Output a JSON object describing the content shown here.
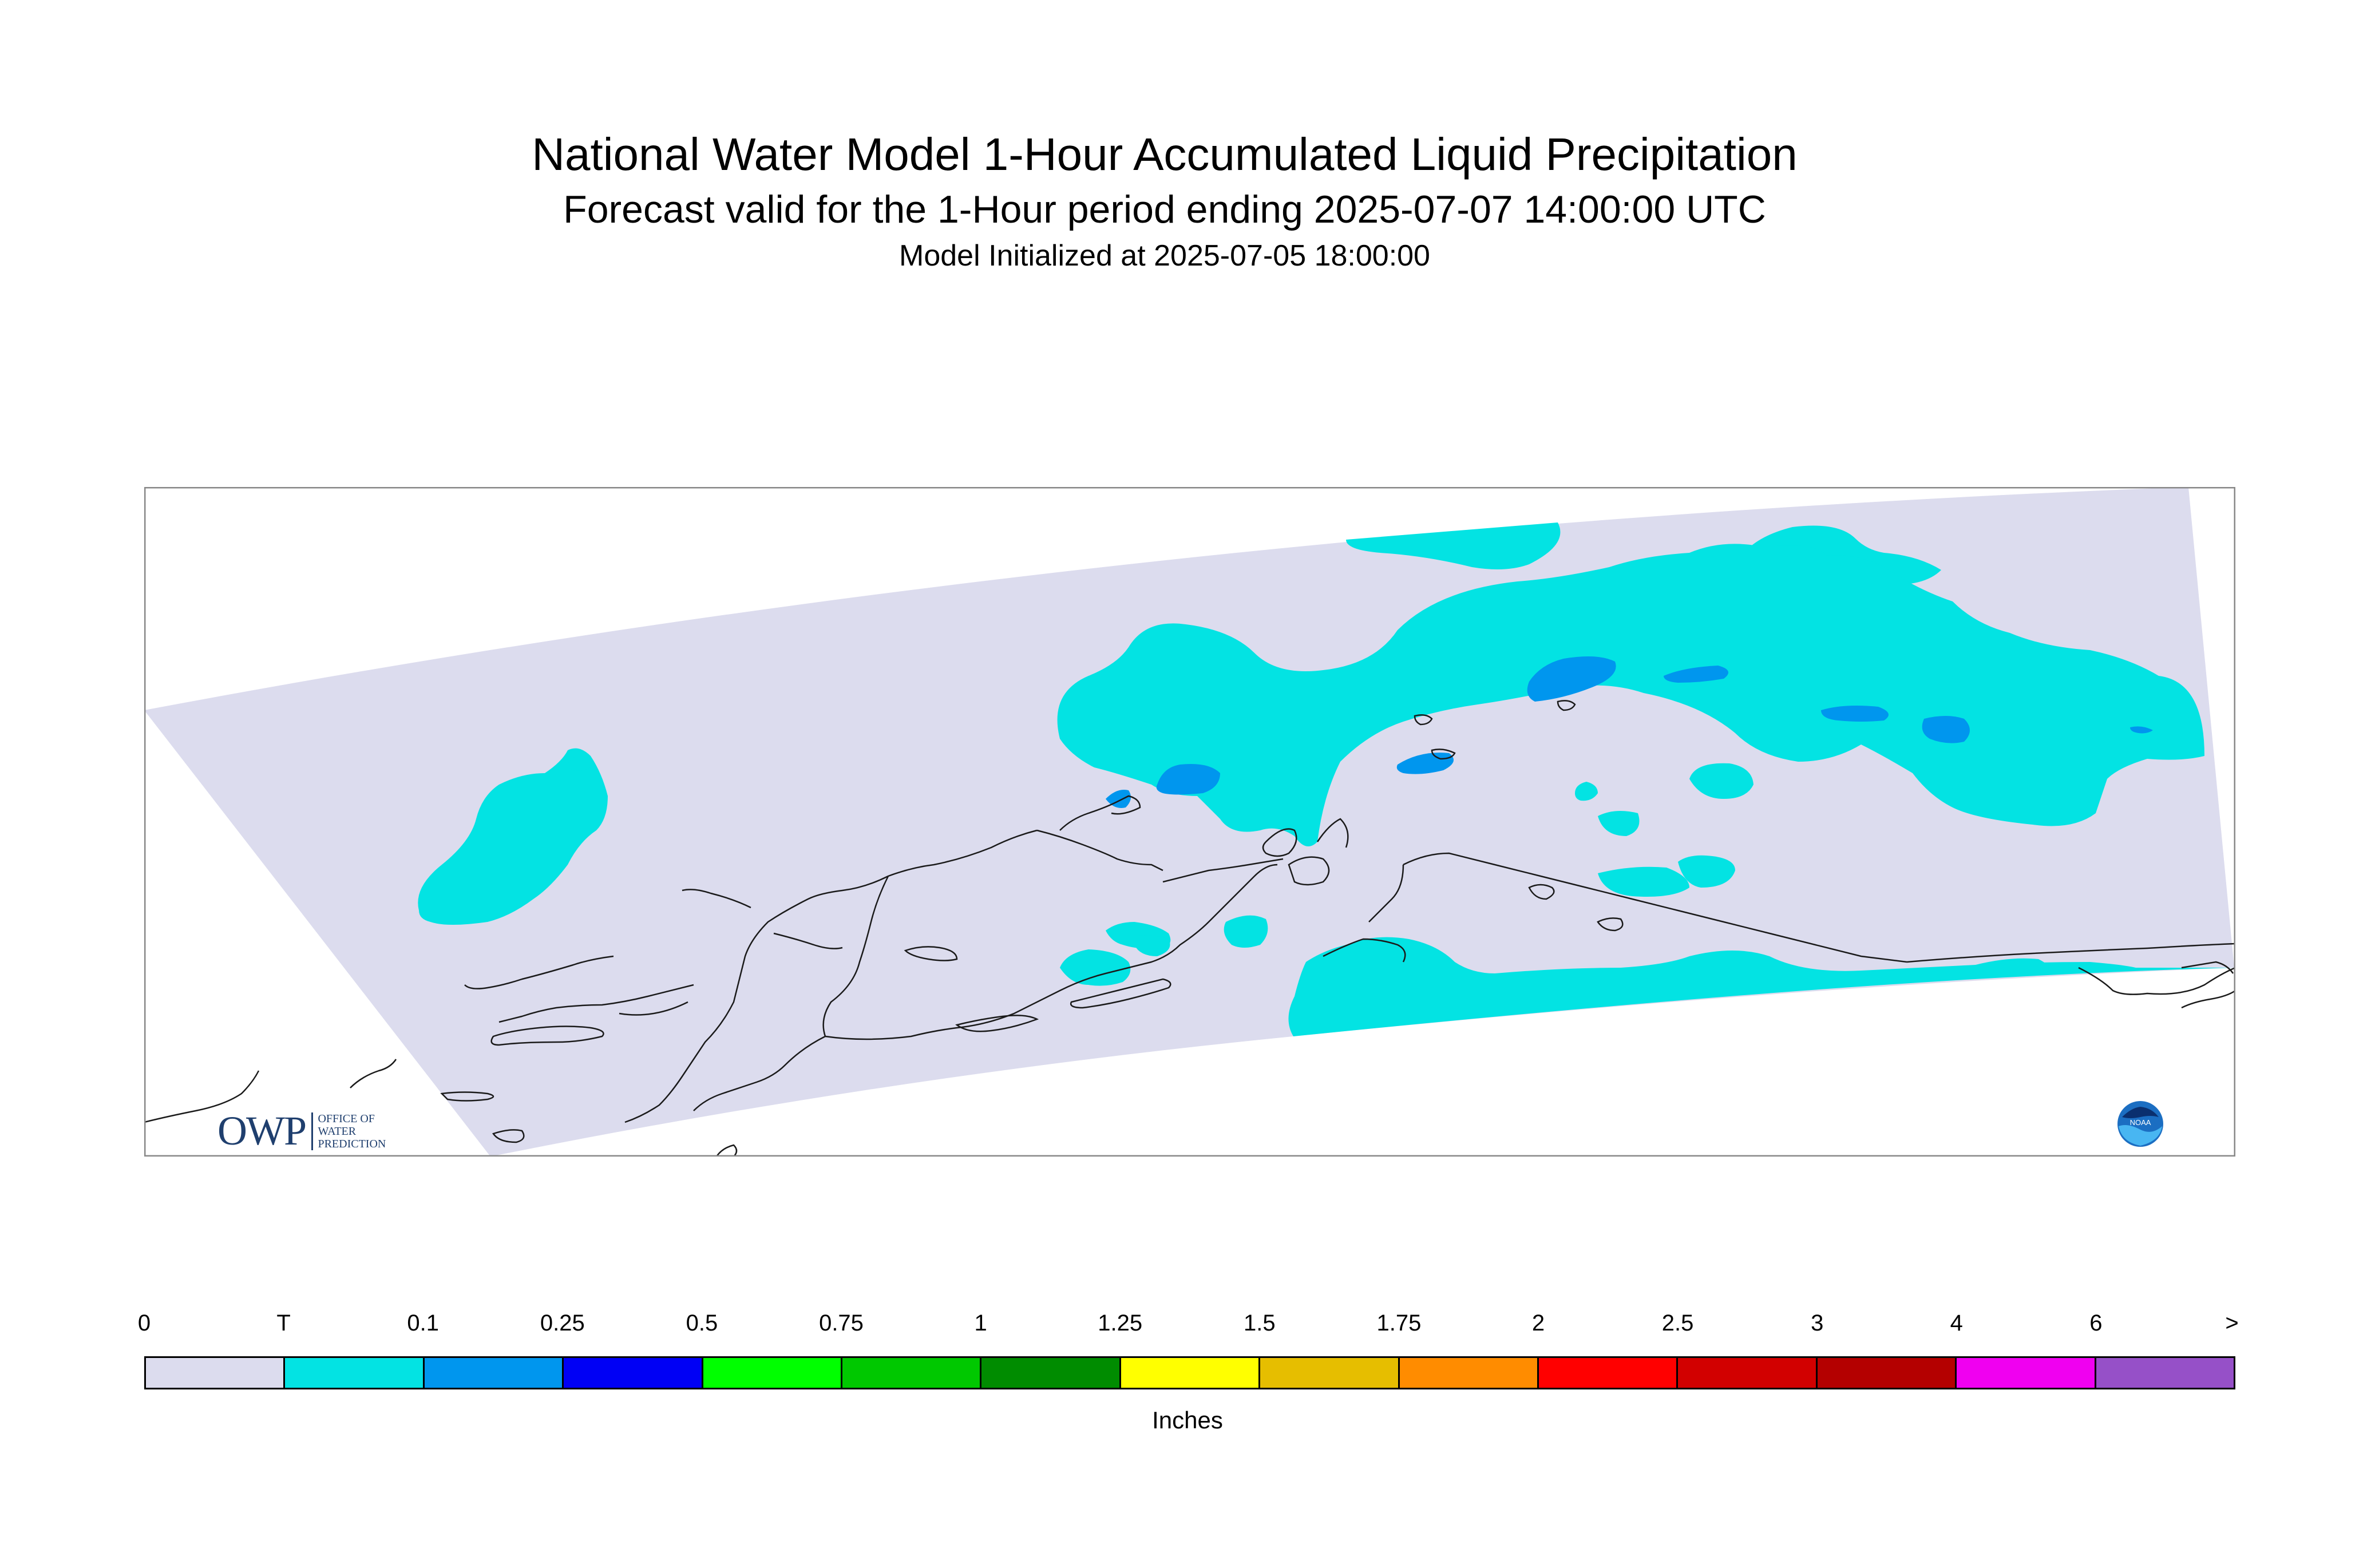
{
  "title": {
    "line1": "National Water Model 1-Hour Accumulated Liquid Precipitation",
    "line2": "Forecast valid for the 1-Hour period ending 2025-07-07 14:00:00 UTC",
    "line3": "Model Initialized at 2025-07-05 18:00:00"
  },
  "colors": {
    "no_precip": "#dcdcee",
    "trace": "#03e3e3",
    "light": "#0096ee",
    "coast": "#1a1a1a",
    "frame": "#888888"
  },
  "logos": {
    "owp_text": "OWP",
    "owp_sub": [
      "OFFICE OF",
      "WATER",
      "PREDICTION"
    ],
    "noaa_text": "NOAA"
  },
  "legend": {
    "labels": [
      "0",
      "T",
      "0.1",
      "0.25",
      "0.5",
      "0.75",
      "1",
      "1.25",
      "1.5",
      "1.75",
      "2",
      "2.5",
      "3",
      "4",
      "6",
      ">"
    ],
    "colors": [
      "#dcdcee",
      "#03e3e3",
      "#0096ee",
      "#0000f5",
      "#00ff00",
      "#00c800",
      "#008c00",
      "#ffff00",
      "#e6be00",
      "#ff8c00",
      "#ff0000",
      "#d20000",
      "#b40000",
      "#f000f0",
      "#9650c8"
    ],
    "units": "Inches"
  }
}
